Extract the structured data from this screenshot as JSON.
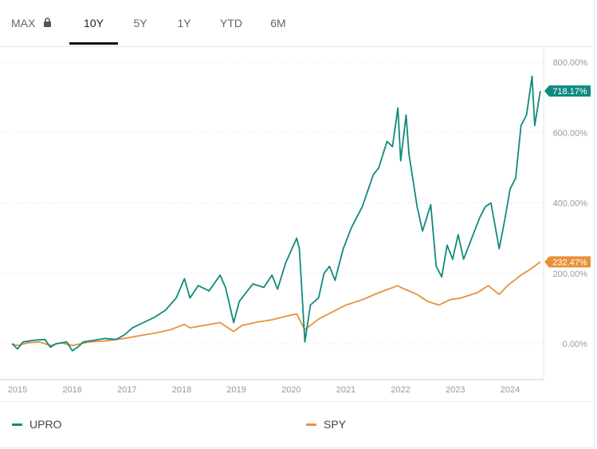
{
  "tabs": [
    {
      "label": "MAX",
      "locked": true,
      "active": false
    },
    {
      "label": "10Y",
      "locked": false,
      "active": true
    },
    {
      "label": "5Y",
      "locked": false,
      "active": false
    },
    {
      "label": "1Y",
      "locked": false,
      "active": false
    },
    {
      "label": "YTD",
      "locked": false,
      "active": false
    },
    {
      "label": "6M",
      "locked": false,
      "active": false
    }
  ],
  "colors": {
    "upro": "#0f8a7e",
    "spy": "#e8913a",
    "grid": "#dddddd",
    "axis_text": "#999999"
  },
  "legend": [
    {
      "name": "UPRO",
      "color": "#0f8a7e"
    },
    {
      "name": "SPY",
      "color": "#e8913a"
    }
  ],
  "chart_data": {
    "type": "line",
    "title": "",
    "xlabel": "",
    "ylabel": "",
    "x_ticks": [
      "2015",
      "2016",
      "2017",
      "2018",
      "2019",
      "2020",
      "2021",
      "2022",
      "2023",
      "2024"
    ],
    "y_ticks": [
      "0.00%",
      "200.00%",
      "400.00%",
      "600.00%",
      "800.00%"
    ],
    "ylim": [
      -100,
      800
    ],
    "xlim": [
      2014.9,
      2024.6
    ],
    "grid": "horizontal dotted",
    "series": [
      {
        "name": "UPRO",
        "last_label": "718.17%",
        "points": [
          [
            2014.9,
            0
          ],
          [
            2015.0,
            -15
          ],
          [
            2015.1,
            5
          ],
          [
            2015.3,
            10
          ],
          [
            2015.5,
            12
          ],
          [
            2015.6,
            -10
          ],
          [
            2015.7,
            0
          ],
          [
            2015.9,
            5
          ],
          [
            2016.0,
            -20
          ],
          [
            2016.1,
            -10
          ],
          [
            2016.2,
            5
          ],
          [
            2016.4,
            10
          ],
          [
            2016.6,
            15
          ],
          [
            2016.8,
            12
          ],
          [
            2016.95,
            25
          ],
          [
            2017.1,
            45
          ],
          [
            2017.3,
            60
          ],
          [
            2017.5,
            75
          ],
          [
            2017.7,
            95
          ],
          [
            2017.9,
            130
          ],
          [
            2018.05,
            185
          ],
          [
            2018.15,
            130
          ],
          [
            2018.3,
            165
          ],
          [
            2018.5,
            150
          ],
          [
            2018.7,
            195
          ],
          [
            2018.8,
            160
          ],
          [
            2018.95,
            60
          ],
          [
            2019.05,
            120
          ],
          [
            2019.3,
            170
          ],
          [
            2019.5,
            160
          ],
          [
            2019.65,
            195
          ],
          [
            2019.75,
            155
          ],
          [
            2019.9,
            230
          ],
          [
            2020.1,
            300
          ],
          [
            2020.15,
            270
          ],
          [
            2020.25,
            5
          ],
          [
            2020.35,
            110
          ],
          [
            2020.5,
            130
          ],
          [
            2020.6,
            200
          ],
          [
            2020.7,
            220
          ],
          [
            2020.8,
            180
          ],
          [
            2020.95,
            270
          ],
          [
            2021.1,
            330
          ],
          [
            2021.3,
            390
          ],
          [
            2021.5,
            480
          ],
          [
            2021.6,
            500
          ],
          [
            2021.75,
            575
          ],
          [
            2021.85,
            560
          ],
          [
            2021.95,
            670
          ],
          [
            2022.0,
            520
          ],
          [
            2022.1,
            650
          ],
          [
            2022.15,
            540
          ],
          [
            2022.3,
            390
          ],
          [
            2022.4,
            320
          ],
          [
            2022.55,
            395
          ],
          [
            2022.65,
            220
          ],
          [
            2022.75,
            190
          ],
          [
            2022.85,
            280
          ],
          [
            2022.95,
            240
          ],
          [
            2023.05,
            310
          ],
          [
            2023.15,
            240
          ],
          [
            2023.3,
            300
          ],
          [
            2023.45,
            360
          ],
          [
            2023.55,
            390
          ],
          [
            2023.65,
            400
          ],
          [
            2023.8,
            270
          ],
          [
            2023.9,
            350
          ],
          [
            2024.0,
            440
          ],
          [
            2024.1,
            470
          ],
          [
            2024.2,
            620
          ],
          [
            2024.3,
            650
          ],
          [
            2024.4,
            760
          ],
          [
            2024.45,
            620
          ],
          [
            2024.55,
            718.17
          ]
        ]
      },
      {
        "name": "SPY",
        "last_label": "232.47%",
        "points": [
          [
            2014.9,
            0
          ],
          [
            2015.0,
            -5
          ],
          [
            2015.2,
            3
          ],
          [
            2015.4,
            5
          ],
          [
            2015.6,
            -5
          ],
          [
            2015.8,
            3
          ],
          [
            2016.0,
            -5
          ],
          [
            2016.1,
            -2
          ],
          [
            2016.3,
            5
          ],
          [
            2016.6,
            8
          ],
          [
            2016.95,
            15
          ],
          [
            2017.2,
            22
          ],
          [
            2017.5,
            30
          ],
          [
            2017.8,
            40
          ],
          [
            2018.05,
            55
          ],
          [
            2018.15,
            45
          ],
          [
            2018.4,
            52
          ],
          [
            2018.7,
            60
          ],
          [
            2018.95,
            35
          ],
          [
            2019.1,
            52
          ],
          [
            2019.4,
            62
          ],
          [
            2019.65,
            68
          ],
          [
            2019.9,
            78
          ],
          [
            2020.1,
            85
          ],
          [
            2020.25,
            40
          ],
          [
            2020.5,
            70
          ],
          [
            2020.75,
            90
          ],
          [
            2021.0,
            110
          ],
          [
            2021.3,
            125
          ],
          [
            2021.6,
            145
          ],
          [
            2021.95,
            165
          ],
          [
            2022.0,
            160
          ],
          [
            2022.3,
            140
          ],
          [
            2022.5,
            120
          ],
          [
            2022.7,
            110
          ],
          [
            2022.9,
            125
          ],
          [
            2023.1,
            130
          ],
          [
            2023.4,
            145
          ],
          [
            2023.6,
            165
          ],
          [
            2023.8,
            140
          ],
          [
            2023.95,
            165
          ],
          [
            2024.2,
            195
          ],
          [
            2024.4,
            215
          ],
          [
            2024.55,
            232.47
          ]
        ]
      }
    ]
  }
}
